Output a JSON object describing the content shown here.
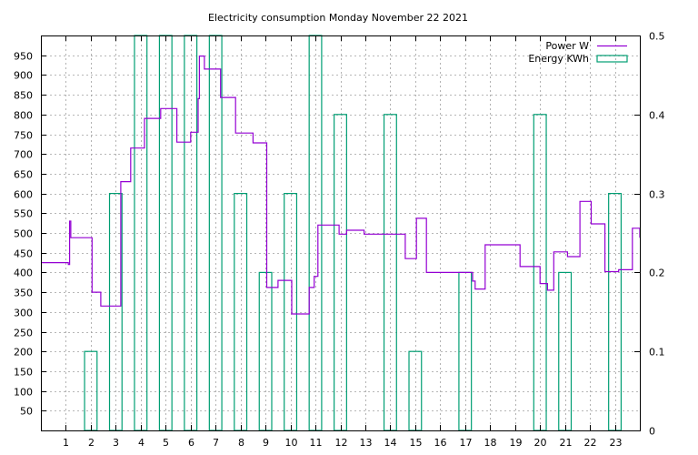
{
  "chart_data": {
    "type": "line",
    "title": "Electricity consumption Monday November 22 2021",
    "xlabel": "",
    "ylabel": "",
    "y2label": "",
    "xlim": [
      0,
      24
    ],
    "ylim": [
      0,
      1000
    ],
    "y2lim": [
      0,
      0.5
    ],
    "grid": true,
    "legend_position": "top-right",
    "xticks": [
      "1",
      "2",
      "3",
      "4",
      "5",
      "6",
      "7",
      "8",
      "9",
      "10",
      "11",
      "12",
      "13",
      "14",
      "15",
      "16",
      "17",
      "18",
      "19",
      "20",
      "21",
      "22",
      "23"
    ],
    "yticks": [
      "50",
      "100",
      "150",
      "200",
      "250",
      "300",
      "350",
      "400",
      "450",
      "500",
      "550",
      "600",
      "650",
      "700",
      "750",
      "800",
      "850",
      "900",
      "950"
    ],
    "y2ticks": [
      "0",
      "0.1",
      "0.2",
      "0.3",
      "0.4",
      "0.5"
    ],
    "series": [
      {
        "name": "Power W",
        "axis": "y1",
        "style": "steps",
        "color": "#9400d3",
        "x": [
          0.0,
          1.1,
          1.15,
          1.2,
          2.05,
          2.4,
          2.95,
          3.2,
          3.6,
          4.15,
          4.8,
          5.45,
          6.0,
          6.3,
          6.35,
          6.55,
          6.75,
          7.2,
          7.8,
          8.5,
          9.05,
          9.5,
          10.05,
          10.75,
          10.95,
          11.1,
          11.95,
          12.25,
          12.95,
          14.1,
          14.6,
          15.05,
          15.45,
          17.3,
          17.4,
          17.8,
          19.2,
          20.0,
          20.3,
          20.55,
          21.1,
          21.6,
          22.05,
          22.6,
          23.15,
          23.7,
          24.0
        ],
        "values": [
          425,
          420,
          530,
          488,
          350,
          315,
          315,
          630,
          715,
          790,
          815,
          730,
          755,
          840,
          948,
          915,
          915,
          843,
          753,
          728,
          362,
          380,
          295,
          362,
          390,
          520,
          497,
          507,
          497,
          497,
          435,
          537,
          400,
          378,
          358,
          470,
          415,
          372,
          355,
          452,
          440,
          580,
          523,
          402,
          407,
          512,
          488
        ]
      },
      {
        "name": "Energy KWh",
        "axis": "y2",
        "style": "boxes",
        "color": "#009e73",
        "x": [
          1,
          2,
          3,
          4,
          5,
          6,
          7,
          8,
          9,
          10,
          11,
          12,
          13,
          14,
          15,
          16,
          17,
          18,
          19,
          20,
          21,
          22,
          23
        ],
        "values": [
          0.0,
          0.1,
          0.3,
          0.5,
          0.5,
          0.5,
          0.5,
          0.3,
          0.2,
          0.3,
          0.5,
          0.4,
          0.0,
          0.4,
          0.1,
          0.0,
          0.2,
          0.0,
          0.0,
          0.4,
          0.2,
          0.0,
          0.3
        ]
      }
    ]
  }
}
